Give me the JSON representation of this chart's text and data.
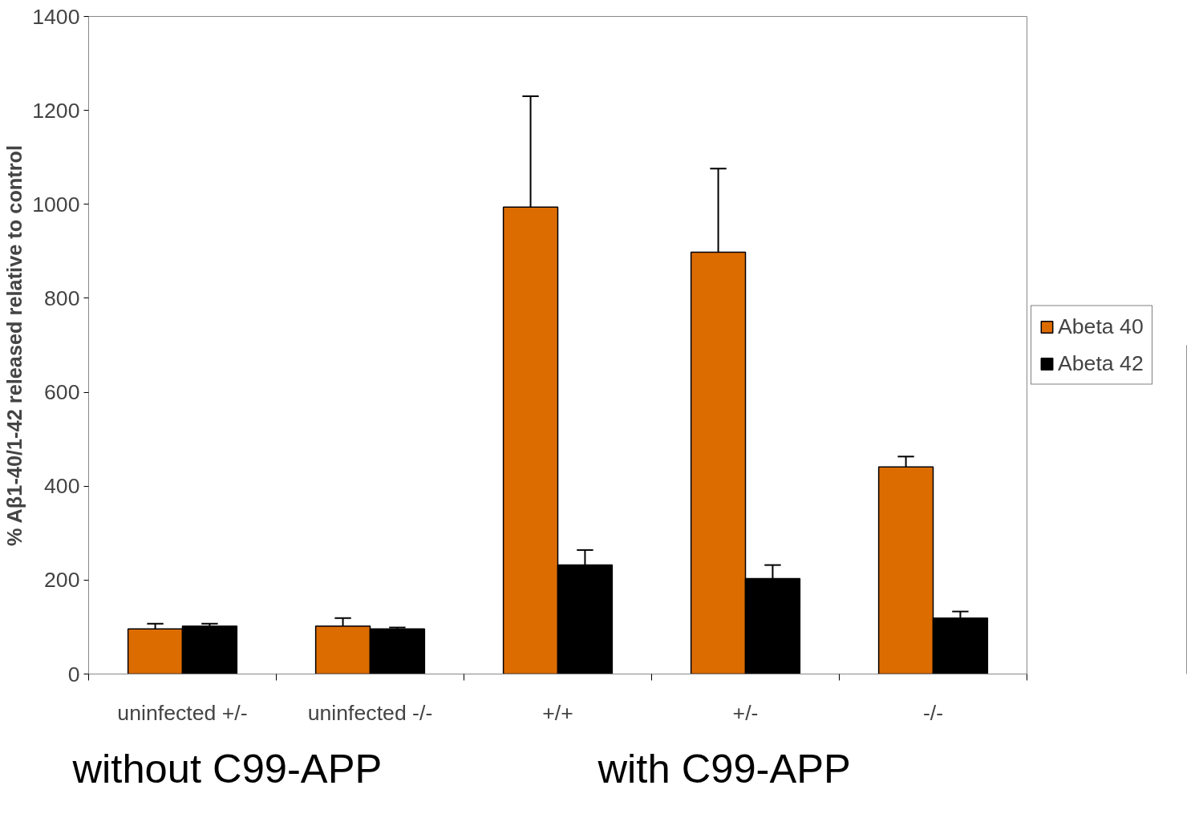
{
  "chart_data": {
    "type": "bar",
    "ylabel": "% Aβ1-40/1-42 released relative to control",
    "categories": [
      "uninfected +/-",
      "uninfected -/-",
      "+/+",
      "+/-",
      "-/-"
    ],
    "series": [
      {
        "name": "Abeta 40",
        "color": "#dd6c00",
        "values": [
          96,
          102,
          994,
          898,
          441
        ],
        "errors": [
          [
            96,
            107
          ],
          [
            102,
            119
          ],
          [
            994,
            1230
          ],
          [
            898,
            1076
          ],
          [
            441,
            463
          ]
        ]
      },
      {
        "name": "Abeta 42",
        "color": "#000000",
        "values": [
          102,
          96,
          232,
          203,
          119
        ],
        "errors": [
          [
            102,
            107
          ],
          [
            96,
            99
          ],
          [
            232,
            264
          ],
          [
            203,
            232
          ],
          [
            119,
            133
          ]
        ]
      }
    ],
    "ylim": [
      0,
      1400
    ],
    "yticks": [
      0,
      200,
      400,
      600,
      800,
      1000,
      1200,
      1400
    ],
    "grid": false,
    "legend": "right",
    "annotations": [
      "without C99-APP",
      "with C99-APP"
    ]
  }
}
